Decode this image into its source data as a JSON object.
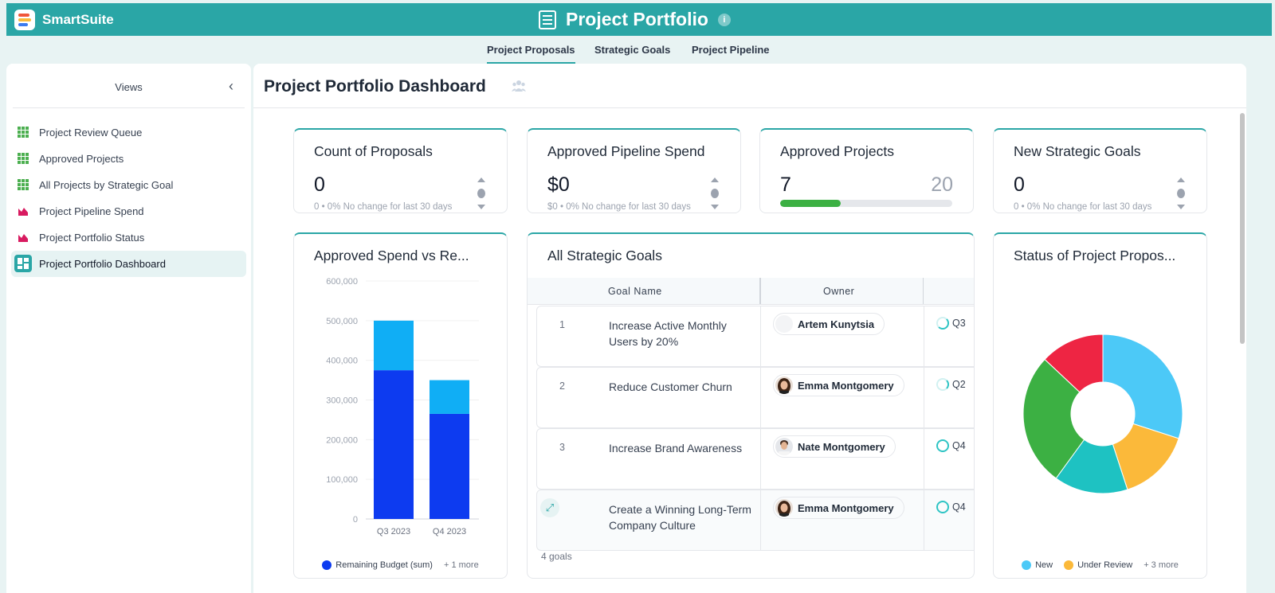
{
  "app": {
    "brand": "SmartSuite",
    "title": "Project Portfolio"
  },
  "tabs": [
    {
      "label": "Project Proposals",
      "active": true
    },
    {
      "label": "Strategic Goals",
      "active": false
    },
    {
      "label": "Project Pipeline",
      "active": false
    }
  ],
  "sidebar": {
    "title": "Views",
    "items": [
      {
        "label": "Project Review Queue",
        "icon": "grid-view-icon"
      },
      {
        "label": "Approved Projects",
        "icon": "grid-view-icon"
      },
      {
        "label": "All Projects by Strategic Goal",
        "icon": "grid-view-icon"
      },
      {
        "label": "Project Pipeline Spend",
        "icon": "chart-view-icon"
      },
      {
        "label": "Project Portfolio Status",
        "icon": "chart-view-icon"
      },
      {
        "label": "Project Portfolio Dashboard",
        "icon": "dashboard-view-icon",
        "active": true
      }
    ]
  },
  "dashboard": {
    "title": "Project Portfolio Dashboard",
    "metrics": [
      {
        "title": "Count of Proposals",
        "value": "0",
        "sub": "0 • 0%  No change for last 30 days"
      },
      {
        "title": "Approved Pipeline Spend",
        "value": "$0",
        "sub": "$0 • 0%  No change for last 30 days"
      },
      {
        "title": "Approved Projects",
        "value": "7",
        "total": "20",
        "progress": 0.35
      },
      {
        "title": "New Strategic Goals",
        "value": "0",
        "sub": "0 • 0%  No change for last 30 days"
      }
    ],
    "spend_chart": {
      "title": "Approved Spend vs Re...",
      "legend": [
        {
          "label": "Remaining Budget (sum)",
          "color": "#0d3bf0"
        }
      ],
      "legend_more": "1 more"
    },
    "goals_table": {
      "title": "All Strategic Goals",
      "columns": [
        "Goal Name",
        "Owner"
      ],
      "rows": [
        {
          "num": "1",
          "goal": "Increase Active Monthly Users by 20%",
          "owner": "Artem Kunytsia",
          "quarter": "Q3",
          "ring": "partial"
        },
        {
          "num": "2",
          "goal": "Reduce Customer Churn",
          "owner": "Emma Montgomery",
          "quarter": "Q2",
          "ring": "half"
        },
        {
          "num": "3",
          "goal": "Increase Brand Awareness",
          "owner": "Nate Montgomery",
          "quarter": "Q4",
          "ring": "full"
        },
        {
          "num": "",
          "goal": "Create a Winning Long-Term Company Culture",
          "owner": "Emma Montgomery",
          "quarter": "Q4",
          "ring": "full"
        }
      ],
      "footer": "4 goals"
    },
    "status_chart": {
      "title": "Status of Project Propos...",
      "legend": [
        {
          "label": "New",
          "color": "#4cc9f7"
        },
        {
          "label": "Under Review",
          "color": "#fbb93a"
        }
      ],
      "legend_more": "3 more"
    }
  },
  "chart_data": [
    {
      "type": "bar",
      "stacked": true,
      "title": "Approved Spend vs Re...",
      "categories": [
        "Q3 2023",
        "Q4 2023"
      ],
      "series": [
        {
          "name": "Remaining Budget (sum)",
          "color": "#0d3bf0",
          "values": [
            375000,
            265000
          ]
        },
        {
          "color": "#10aef5",
          "values": [
            125000,
            85000
          ]
        }
      ],
      "yticks": [
        "0",
        "100,000",
        "200,000",
        "300,000",
        "400,000",
        "500,000",
        "600,000"
      ],
      "ylim": [
        0,
        600000
      ]
    },
    {
      "type": "pie",
      "donut": true,
      "title": "Status of Project Propos...",
      "slices": [
        {
          "name": "New",
          "value": 30,
          "color": "#4cc9f7"
        },
        {
          "name": "Under Review",
          "value": 15,
          "color": "#fbb93a"
        },
        {
          "value": 15,
          "color": "#1ec2c2"
        },
        {
          "value": 27,
          "color": "#3cb043"
        },
        {
          "value": 13,
          "color": "#ee2543"
        }
      ]
    }
  ]
}
